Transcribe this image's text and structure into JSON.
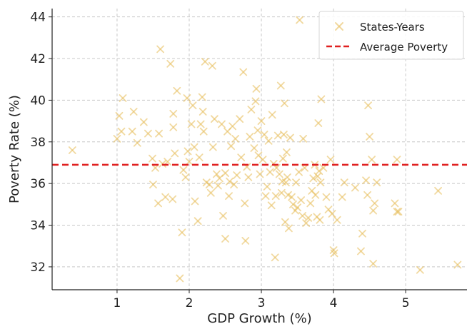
{
  "chart_data": {
    "type": "scatter",
    "title": "",
    "xlabel": "GDP Growth (%)",
    "ylabel": "Poverty Rate (%)",
    "xlim": [
      0.1,
      5.85
    ],
    "ylim": [
      30.9,
      44.4
    ],
    "xticks": [
      1,
      2,
      3,
      4,
      5
    ],
    "yticks": [
      32,
      34,
      36,
      38,
      40,
      42,
      44
    ],
    "grid": true,
    "legend_position": "top-right",
    "colors": {
      "points": "#e8c060",
      "average": "#e02020",
      "grid": "#c8c8c8"
    },
    "series": [
      {
        "name": "States-Years",
        "marker": "x",
        "points": [
          [
            0.38,
            37.6
          ],
          [
            1.0,
            38.15
          ],
          [
            1.03,
            39.25
          ],
          [
            1.06,
            38.5
          ],
          [
            1.08,
            40.1
          ],
          [
            1.21,
            38.5
          ],
          [
            1.23,
            39.45
          ],
          [
            1.28,
            37.95
          ],
          [
            1.37,
            38.95
          ],
          [
            1.43,
            38.4
          ],
          [
            1.49,
            37.2
          ],
          [
            1.5,
            35.95
          ],
          [
            1.53,
            36.75
          ],
          [
            1.57,
            35.05
          ],
          [
            1.58,
            38.4
          ],
          [
            1.6,
            42.45
          ],
          [
            1.63,
            36.95
          ],
          [
            1.67,
            35.35
          ],
          [
            1.7,
            37.05
          ],
          [
            1.74,
            41.75
          ],
          [
            1.77,
            35.25
          ],
          [
            1.78,
            38.7
          ],
          [
            1.78,
            39.35
          ],
          [
            1.8,
            37.45
          ],
          [
            1.83,
            40.45
          ],
          [
            1.87,
            31.45
          ],
          [
            1.9,
            33.65
          ],
          [
            1.92,
            36.65
          ],
          [
            1.95,
            36.3
          ],
          [
            1.97,
            40.1
          ],
          [
            1.98,
            37.55
          ],
          [
            2.0,
            37.05
          ],
          [
            2.03,
            38.85
          ],
          [
            2.05,
            39.75
          ],
          [
            2.07,
            37.75
          ],
          [
            2.08,
            35.15
          ],
          [
            2.12,
            34.2
          ],
          [
            2.14,
            37.25
          ],
          [
            2.16,
            38.85
          ],
          [
            2.18,
            40.15
          ],
          [
            2.19,
            39.45
          ],
          [
            2.2,
            38.5
          ],
          [
            2.22,
            41.85
          ],
          [
            2.24,
            36.05
          ],
          [
            2.28,
            35.95
          ],
          [
            2.3,
            35.55
          ],
          [
            2.32,
            41.65
          ],
          [
            2.33,
            37.75
          ],
          [
            2.35,
            39.1
          ],
          [
            2.38,
            36.45
          ],
          [
            2.4,
            35.9
          ],
          [
            2.42,
            36.25
          ],
          [
            2.45,
            38.85
          ],
          [
            2.47,
            34.45
          ],
          [
            2.5,
            33.35
          ],
          [
            2.5,
            36.5
          ],
          [
            2.53,
            38.5
          ],
          [
            2.55,
            35.4
          ],
          [
            2.56,
            36.1
          ],
          [
            2.58,
            37.8
          ],
          [
            2.6,
            38.75
          ],
          [
            2.62,
            35.95
          ],
          [
            2.64,
            38.15
          ],
          [
            2.66,
            36.4
          ],
          [
            2.7,
            39.1
          ],
          [
            2.72,
            37.25
          ],
          [
            2.75,
            41.35
          ],
          [
            2.77,
            35.05
          ],
          [
            2.78,
            33.25
          ],
          [
            2.8,
            36.8
          ],
          [
            2.82,
            36.3
          ],
          [
            2.84,
            38.25
          ],
          [
            2.86,
            39.55
          ],
          [
            2.9,
            37.7
          ],
          [
            2.92,
            39.95
          ],
          [
            2.93,
            40.55
          ],
          [
            2.95,
            38.55
          ],
          [
            2.96,
            37.35
          ],
          [
            2.98,
            36.45
          ],
          [
            3.0,
            39.0
          ],
          [
            3.02,
            37.15
          ],
          [
            3.04,
            38.35
          ],
          [
            3.06,
            35.4
          ],
          [
            3.08,
            35.85
          ],
          [
            3.1,
            38.05
          ],
          [
            3.12,
            36.55
          ],
          [
            3.14,
            34.95
          ],
          [
            3.15,
            39.3
          ],
          [
            3.17,
            36.95
          ],
          [
            3.19,
            32.45
          ],
          [
            3.2,
            35.4
          ],
          [
            3.21,
            36.75
          ],
          [
            3.23,
            38.3
          ],
          [
            3.25,
            36.45
          ],
          [
            3.27,
            40.7
          ],
          [
            3.28,
            35.55
          ],
          [
            3.29,
            36.1
          ],
          [
            3.3,
            37.2
          ],
          [
            3.31,
            38.35
          ],
          [
            3.32,
            39.85
          ],
          [
            3.33,
            34.15
          ],
          [
            3.34,
            36.05
          ],
          [
            3.35,
            37.5
          ],
          [
            3.36,
            36.3
          ],
          [
            3.37,
            35.45
          ],
          [
            3.38,
            33.85
          ],
          [
            3.4,
            38.2
          ],
          [
            3.42,
            35.35
          ],
          [
            3.44,
            35.0
          ],
          [
            3.47,
            34.7
          ],
          [
            3.48,
            36.05
          ],
          [
            3.5,
            34.85
          ],
          [
            3.52,
            36.55
          ],
          [
            3.53,
            43.85
          ],
          [
            3.55,
            35.2
          ],
          [
            3.57,
            34.45
          ],
          [
            3.58,
            38.15
          ],
          [
            3.6,
            36.75
          ],
          [
            3.62,
            34.1
          ],
          [
            3.65,
            34.35
          ],
          [
            3.68,
            35.05
          ],
          [
            3.7,
            35.65
          ],
          [
            3.72,
            36.25
          ],
          [
            3.74,
            36.9
          ],
          [
            3.75,
            35.45
          ],
          [
            3.77,
            34.4
          ],
          [
            3.78,
            36.35
          ],
          [
            3.79,
            38.9
          ],
          [
            3.8,
            36.6
          ],
          [
            3.81,
            34.25
          ],
          [
            3.82,
            36.05
          ],
          [
            3.83,
            40.05
          ],
          [
            3.86,
            36.75
          ],
          [
            3.9,
            35.35
          ],
          [
            3.93,
            34.75
          ],
          [
            3.96,
            37.15
          ],
          [
            3.98,
            34.55
          ],
          [
            4.0,
            32.8
          ],
          [
            4.01,
            32.65
          ],
          [
            4.05,
            34.25
          ],
          [
            4.12,
            35.35
          ],
          [
            4.15,
            36.05
          ],
          [
            4.3,
            35.8
          ],
          [
            4.38,
            32.75
          ],
          [
            4.4,
            33.6
          ],
          [
            4.45,
            36.15
          ],
          [
            4.47,
            35.45
          ],
          [
            4.48,
            39.75
          ],
          [
            4.5,
            38.25
          ],
          [
            4.53,
            37.15
          ],
          [
            4.55,
            34.7
          ],
          [
            4.55,
            32.15
          ],
          [
            4.57,
            35.05
          ],
          [
            4.6,
            36.05
          ],
          [
            4.85,
            35.05
          ],
          [
            4.88,
            34.65
          ],
          [
            4.88,
            37.15
          ],
          [
            4.9,
            34.65
          ],
          [
            5.2,
            31.85
          ],
          [
            5.45,
            35.65
          ],
          [
            5.72,
            32.1
          ]
        ]
      },
      {
        "name": "Average Poverty",
        "type": "hline",
        "y": 36.9
      }
    ]
  }
}
